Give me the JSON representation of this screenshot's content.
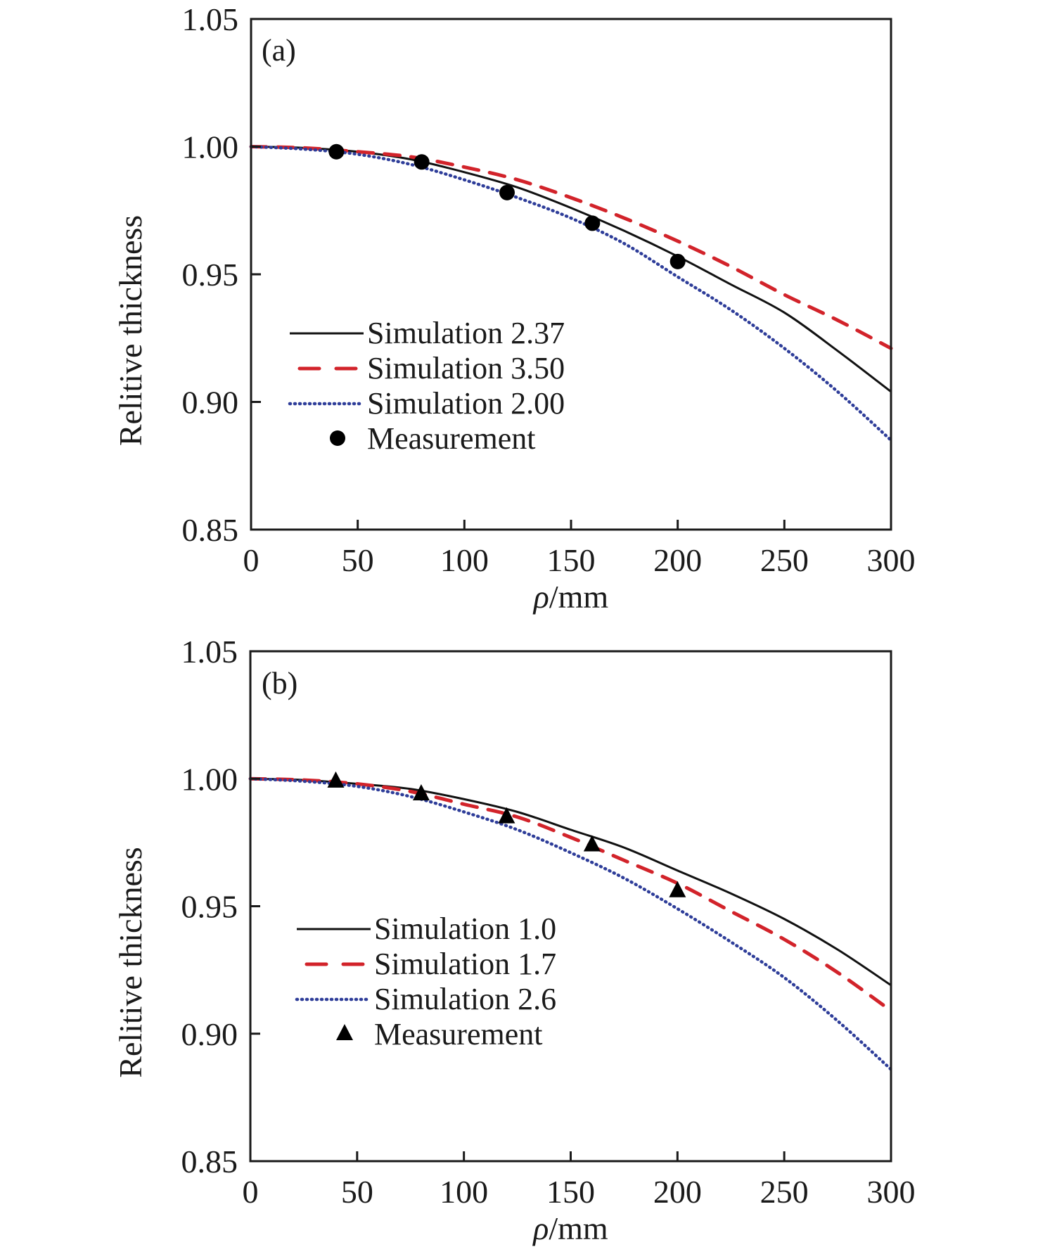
{
  "chart_data": [
    {
      "type": "line",
      "panel_label": "(a)",
      "xlabel_var": "ρ",
      "xlabel_unit": "/mm",
      "ylabel": "Relitive thickness",
      "xlim": [
        0,
        300
      ],
      "ylim": [
        0.85,
        1.05
      ],
      "xticks": [
        0,
        50,
        100,
        150,
        200,
        250,
        300
      ],
      "yticks": [
        0.85,
        0.9,
        0.95,
        1.0,
        1.05
      ],
      "ytick_labels": [
        "0.85",
        "0.90",
        "0.95",
        "1.00",
        "1.05"
      ],
      "grid": false,
      "legend_position": "lower-left",
      "x": [
        0,
        25,
        50,
        75,
        100,
        125,
        150,
        175,
        200,
        225,
        250,
        275,
        300
      ],
      "series": [
        {
          "name": "Simulation 2.37",
          "style": "solid",
          "color": "#111111",
          "values": [
            1.0,
            0.9995,
            0.998,
            0.995,
            0.99,
            0.984,
            0.976,
            0.967,
            0.957,
            0.946,
            0.935,
            0.92,
            0.904
          ]
        },
        {
          "name": "Simulation 3.50",
          "style": "dashed",
          "color": "#d2232a",
          "values": [
            1.0,
            0.9995,
            0.998,
            0.996,
            0.992,
            0.987,
            0.98,
            0.972,
            0.963,
            0.953,
            0.942,
            0.932,
            0.921
          ]
        },
        {
          "name": "Simulation 2.00",
          "style": "dotted",
          "color": "#2e3d99",
          "values": [
            1.0,
            0.999,
            0.997,
            0.993,
            0.987,
            0.98,
            0.972,
            0.962,
            0.949,
            0.936,
            0.921,
            0.904,
            0.885
          ]
        }
      ],
      "measurement": {
        "name": "Measurement",
        "marker": "circle",
        "color": "#000000",
        "x": [
          40,
          80,
          120,
          160,
          200
        ],
        "y": [
          0.998,
          0.994,
          0.982,
          0.97,
          0.955
        ]
      }
    },
    {
      "type": "line",
      "panel_label": "(b)",
      "xlabel_var": "ρ",
      "xlabel_unit": "/mm",
      "ylabel": "Relitive thickness",
      "xlim": [
        0,
        300
      ],
      "ylim": [
        0.85,
        1.05
      ],
      "xticks": [
        0,
        50,
        100,
        150,
        200,
        250,
        300
      ],
      "yticks": [
        0.85,
        0.9,
        0.95,
        1.0,
        1.05
      ],
      "ytick_labels": [
        "0.85",
        "0.90",
        "0.95",
        "1.00",
        "1.05"
      ],
      "grid": false,
      "legend_position": "lower-left",
      "x": [
        0,
        25,
        50,
        75,
        100,
        125,
        150,
        175,
        200,
        225,
        250,
        275,
        300
      ],
      "series": [
        {
          "name": "Simulation 1.0",
          "style": "solid",
          "color": "#111111",
          "values": [
            1.0,
            0.9995,
            0.998,
            0.996,
            0.992,
            0.987,
            0.98,
            0.973,
            0.964,
            0.955,
            0.945,
            0.933,
            0.919
          ]
        },
        {
          "name": "Simulation 1.7",
          "style": "dashed",
          "color": "#d2232a",
          "values": [
            1.0,
            0.9995,
            0.998,
            0.995,
            0.99,
            0.985,
            0.977,
            0.968,
            0.959,
            0.948,
            0.937,
            0.924,
            0.909
          ]
        },
        {
          "name": "Simulation 2.6",
          "style": "dotted",
          "color": "#2e3d99",
          "values": [
            1.0,
            0.999,
            0.997,
            0.993,
            0.987,
            0.98,
            0.971,
            0.961,
            0.949,
            0.936,
            0.922,
            0.905,
            0.886
          ]
        }
      ],
      "measurement": {
        "name": "Measurement",
        "marker": "triangle",
        "color": "#000000",
        "x": [
          40,
          80,
          120,
          160,
          200
        ],
        "y": [
          0.999,
          0.994,
          0.985,
          0.974,
          0.956
        ]
      }
    }
  ]
}
